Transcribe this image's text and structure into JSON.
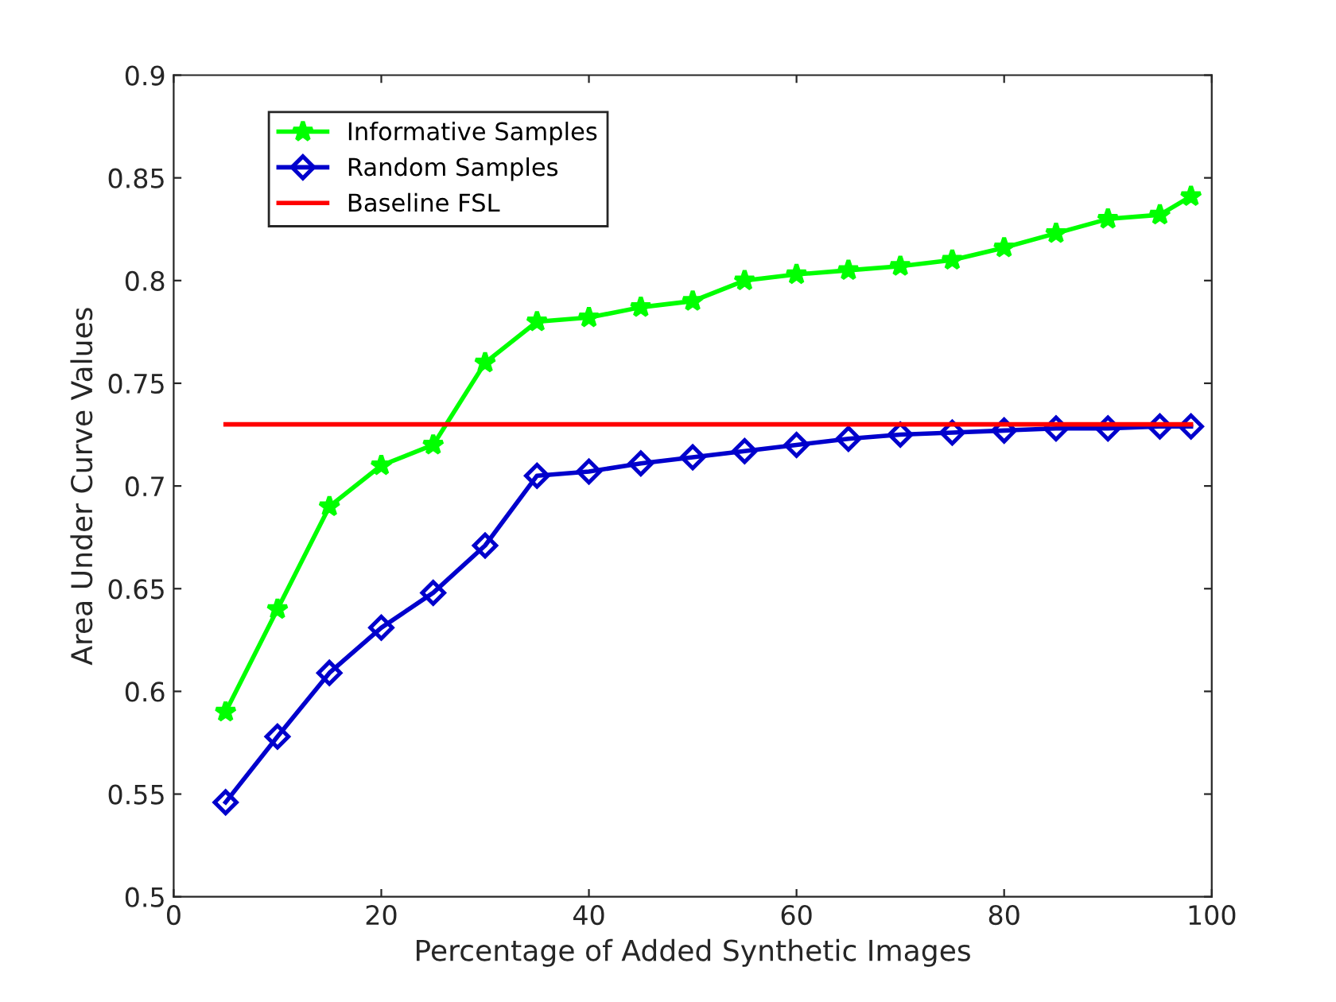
{
  "chart_data": {
    "type": "line",
    "xlabel": "Percentage of Added Synthetic Images",
    "ylabel": "Area Under Curve Values",
    "xlim": [
      0,
      100
    ],
    "xticks": [
      0,
      20,
      40,
      60,
      80,
      100
    ],
    "ylim": [
      0.5,
      0.9
    ],
    "yticks": [
      0.5,
      0.55,
      0.6,
      0.65,
      0.7,
      0.75,
      0.8,
      0.85,
      0.9
    ],
    "grid": false,
    "legend": "top left",
    "line_style": "solid",
    "series": [
      {
        "name": "Informative Samples",
        "color": "#00ff00",
        "marker": "star",
        "x": [
          5,
          10,
          15,
          20,
          25,
          30,
          35,
          40,
          45,
          50,
          55,
          60,
          65,
          70,
          75,
          80,
          85,
          90,
          95,
          98
        ],
        "values": [
          0.59,
          0.64,
          0.69,
          0.71,
          0.72,
          0.76,
          0.78,
          0.782,
          0.787,
          0.79,
          0.8,
          0.803,
          0.805,
          0.807,
          0.81,
          0.816,
          0.823,
          0.83,
          0.832,
          0.841
        ]
      },
      {
        "name": "Random Samples",
        "color": "#0000cc",
        "marker": "diamond",
        "x": [
          5,
          10,
          15,
          20,
          25,
          30,
          35,
          40,
          45,
          50,
          55,
          60,
          65,
          70,
          75,
          80,
          85,
          90,
          95,
          98
        ],
        "values": [
          0.546,
          0.578,
          0.609,
          0.631,
          0.648,
          0.671,
          0.705,
          0.707,
          0.711,
          0.714,
          0.717,
          0.72,
          0.723,
          0.725,
          0.726,
          0.727,
          0.728,
          0.728,
          0.729,
          0.729
        ]
      },
      {
        "name": "Baseline FSL",
        "color": "#ff0000",
        "marker": "none",
        "x": [
          5,
          98
        ],
        "values": [
          0.73,
          0.73
        ]
      }
    ]
  }
}
